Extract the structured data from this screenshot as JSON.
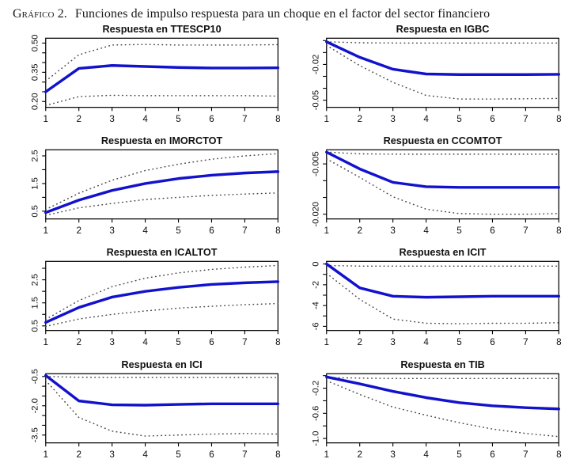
{
  "caption": {
    "label": "Gráfico 2.",
    "text": "Funciones de impulso respuesta para un choque en el factor del sector financiero"
  },
  "colors": {
    "response_line": "#1212cc",
    "band_dotted": "#474747",
    "axis": "#000000",
    "text": "#111111",
    "background": "#ffffff"
  },
  "chart_data": [
    {
      "type": "line",
      "title": "Respuesta en TTESCP10",
      "x": [
        1,
        2,
        3,
        4,
        5,
        6,
        7,
        8
      ],
      "ylim": [
        0.17,
        0.525
      ],
      "yticks": [
        {
          "v": 0.2,
          "label": "0.20"
        },
        {
          "v": 0.35,
          "label": "0.35"
        },
        {
          "v": 0.5,
          "label": "0.50"
        }
      ],
      "yticks_minor": [
        0.25,
        0.3,
        0.4,
        0.45
      ],
      "series": [
        {
          "name": "respuesta",
          "style": "solid",
          "values": [
            0.25,
            0.37,
            0.385,
            0.38,
            0.375,
            0.372,
            0.372,
            0.373
          ]
        },
        {
          "name": "banda_superior",
          "style": "dotted",
          "values": [
            0.305,
            0.44,
            0.49,
            0.493,
            0.49,
            0.49,
            0.49,
            0.492
          ]
        },
        {
          "name": "banda_inferior",
          "style": "dotted",
          "values": [
            0.18,
            0.225,
            0.232,
            0.23,
            0.23,
            0.23,
            0.23,
            0.228
          ]
        }
      ]
    },
    {
      "type": "line",
      "title": "Respuesta en IGBC",
      "x": [
        1,
        2,
        3,
        4,
        5,
        6,
        7,
        8
      ],
      "ylim": [
        -0.056,
        0.002
      ],
      "yticks": [
        {
          "v": -0.02,
          "label": "-0.02"
        },
        {
          "v": -0.05,
          "label": "-0.05"
        }
      ],
      "yticks_minor": [
        0.0,
        -0.01,
        -0.03,
        -0.04
      ],
      "series": [
        {
          "name": "respuesta",
          "style": "solid",
          "values": [
            -0.001,
            -0.014,
            -0.024,
            -0.028,
            -0.0285,
            -0.0285,
            -0.0285,
            -0.0283
          ]
        },
        {
          "name": "banda_superior",
          "style": "dotted",
          "values": [
            -0.001,
            -0.0018,
            -0.002,
            -0.002,
            -0.002,
            -0.002,
            -0.002,
            -0.002
          ]
        },
        {
          "name": "banda_inferior",
          "style": "dotted",
          "values": [
            -0.004,
            -0.021,
            -0.035,
            -0.046,
            -0.049,
            -0.049,
            -0.0488,
            -0.0485
          ]
        }
      ]
    },
    {
      "type": "line",
      "title": "Respuesta en IMORCTOT",
      "x": [
        1,
        2,
        3,
        4,
        5,
        6,
        7,
        8
      ],
      "ylim": [
        0.22,
        2.72
      ],
      "yticks": [
        {
          "v": 0.5,
          "label": "0.5"
        },
        {
          "v": 1.5,
          "label": "1.5"
        },
        {
          "v": 2.5,
          "label": "2.5"
        }
      ],
      "yticks_minor": [
        1.0,
        2.0
      ],
      "series": [
        {
          "name": "respuesta",
          "style": "solid",
          "values": [
            0.45,
            0.9,
            1.25,
            1.5,
            1.68,
            1.8,
            1.88,
            1.93
          ]
        },
        {
          "name": "banda_superior",
          "style": "dotted",
          "values": [
            0.56,
            1.15,
            1.62,
            1.97,
            2.2,
            2.38,
            2.5,
            2.58
          ]
        },
        {
          "name": "banda_inferior",
          "style": "dotted",
          "values": [
            0.35,
            0.62,
            0.78,
            0.92,
            1.0,
            1.07,
            1.12,
            1.16
          ]
        }
      ]
    },
    {
      "type": "line",
      "title": "Respuesta en CCOMTOT",
      "x": [
        1,
        2,
        3,
        4,
        5,
        6,
        7,
        8
      ],
      "ylim": [
        -0.0214,
        -0.0008
      ],
      "yticks": [
        {
          "v": -0.005,
          "label": "-0.005"
        },
        {
          "v": -0.02,
          "label": "-0.020"
        }
      ],
      "yticks_minor": [
        -0.01,
        -0.015
      ],
      "series": [
        {
          "name": "respuesta",
          "style": "solid",
          "values": [
            -0.0015,
            -0.0065,
            -0.0105,
            -0.0118,
            -0.012,
            -0.012,
            -0.012,
            -0.012
          ]
        },
        {
          "name": "banda_superior",
          "style": "dotted",
          "values": [
            -0.0015,
            -0.002,
            -0.0021,
            -0.0021,
            -0.0021,
            -0.0021,
            -0.0021,
            -0.0021
          ]
        },
        {
          "name": "banda_inferior",
          "style": "dotted",
          "values": [
            -0.0035,
            -0.009,
            -0.0148,
            -0.0185,
            -0.0198,
            -0.02,
            -0.02,
            -0.0198
          ]
        }
      ]
    },
    {
      "type": "line",
      "title": "Respuesta en ICALTOT",
      "x": [
        1,
        2,
        3,
        4,
        5,
        6,
        7,
        8
      ],
      "ylim": [
        0.3,
        3.3
      ],
      "yticks": [
        {
          "v": 0.5,
          "label": "0.5"
        },
        {
          "v": 1.5,
          "label": "1.5"
        },
        {
          "v": 2.5,
          "label": "2.5"
        }
      ],
      "yticks_minor": [
        1.0,
        2.0,
        3.0
      ],
      "series": [
        {
          "name": "respuesta",
          "style": "solid",
          "values": [
            0.65,
            1.3,
            1.75,
            2.0,
            2.17,
            2.3,
            2.37,
            2.42
          ]
        },
        {
          "name": "banda_superior",
          "style": "dotted",
          "values": [
            0.78,
            1.6,
            2.2,
            2.57,
            2.8,
            2.95,
            3.05,
            3.12
          ]
        },
        {
          "name": "banda_inferior",
          "style": "dotted",
          "values": [
            0.48,
            0.8,
            1.0,
            1.15,
            1.27,
            1.35,
            1.42,
            1.47
          ]
        }
      ]
    },
    {
      "type": "line",
      "title": "Respuesta en ICIT",
      "x": [
        1,
        2,
        3,
        4,
        5,
        6,
        7,
        8
      ],
      "ylim": [
        -6.4,
        0.25
      ],
      "yticks": [
        {
          "v": 0,
          "label": "0"
        },
        {
          "v": -2,
          "label": "-2"
        },
        {
          "v": -4,
          "label": "-4"
        },
        {
          "v": -6,
          "label": "-6"
        }
      ],
      "yticks_minor": [
        -1,
        -3,
        -5
      ],
      "series": [
        {
          "name": "respuesta",
          "style": "solid",
          "values": [
            0,
            -2.3,
            -3.1,
            -3.2,
            -3.15,
            -3.1,
            -3.1,
            -3.1
          ]
        },
        {
          "name": "banda_superior",
          "style": "dotted",
          "values": [
            -0.15,
            -0.2,
            -0.2,
            -0.2,
            -0.2,
            -0.2,
            -0.2,
            -0.2
          ]
        },
        {
          "name": "banda_inferior",
          "style": "dotted",
          "values": [
            -0.9,
            -3.4,
            -5.3,
            -5.7,
            -5.75,
            -5.7,
            -5.7,
            -5.65
          ]
        }
      ]
    },
    {
      "type": "line",
      "title": "Respuesta en ICI",
      "x": [
        1,
        2,
        3,
        4,
        5,
        6,
        7,
        8
      ],
      "ylim": [
        -3.9,
        -0.36
      ],
      "yticks": [
        {
          "v": -0.5,
          "label": "-0.5"
        },
        {
          "v": -2.0,
          "label": "-2.0"
        },
        {
          "v": -3.5,
          "label": "-3.5"
        }
      ],
      "yticks_minor": [
        -1.0,
        -1.5,
        -2.5,
        -3.0
      ],
      "series": [
        {
          "name": "respuesta",
          "style": "solid",
          "values": [
            -0.45,
            -1.75,
            -1.95,
            -1.97,
            -1.93,
            -1.9,
            -1.9,
            -1.9
          ]
        },
        {
          "name": "banda_superior",
          "style": "dotted",
          "values": [
            -0.5,
            -0.54,
            -0.55,
            -0.55,
            -0.55,
            -0.55,
            -0.55,
            -0.55
          ]
        },
        {
          "name": "banda_inferior",
          "style": "dotted",
          "values": [
            -0.7,
            -2.6,
            -3.3,
            -3.55,
            -3.5,
            -3.45,
            -3.42,
            -3.45
          ]
        }
      ]
    },
    {
      "type": "line",
      "title": "Respuesta en TIB",
      "x": [
        1,
        2,
        3,
        4,
        5,
        6,
        7,
        8
      ],
      "ylim": [
        -1.07,
        0.03
      ],
      "yticks": [
        {
          "v": -0.2,
          "label": "-0.2"
        },
        {
          "v": -0.6,
          "label": "-0.6"
        },
        {
          "v": -1.0,
          "label": "-1.0"
        }
      ],
      "yticks_minor": [
        0.0,
        -0.4,
        -0.8
      ],
      "series": [
        {
          "name": "respuesta",
          "style": "solid",
          "values": [
            -0.02,
            -0.13,
            -0.25,
            -0.35,
            -0.43,
            -0.48,
            -0.51,
            -0.53
          ]
        },
        {
          "name": "banda_superior",
          "style": "dotted",
          "values": [
            -0.03,
            -0.04,
            -0.045,
            -0.045,
            -0.045,
            -0.045,
            -0.045,
            -0.045
          ]
        },
        {
          "name": "banda_inferior",
          "style": "dotted",
          "values": [
            -0.08,
            -0.3,
            -0.5,
            -0.63,
            -0.75,
            -0.85,
            -0.92,
            -0.97
          ]
        }
      ]
    }
  ]
}
